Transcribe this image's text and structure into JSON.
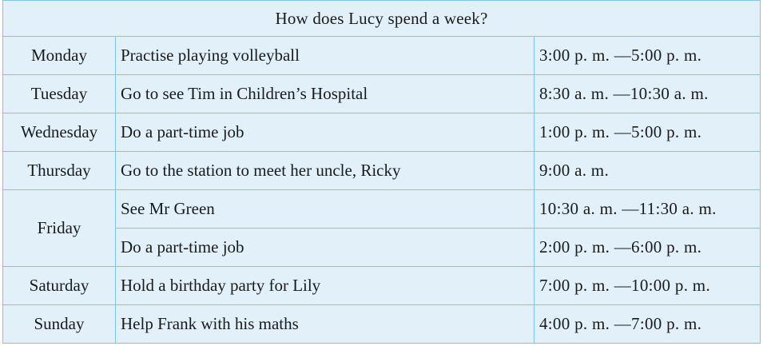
{
  "title": "How does Lucy spend a week?",
  "rows": [
    {
      "day": "Monday",
      "activity": "Practise playing volleyball",
      "time": "3:00 p. m. —5:00 p. m."
    },
    {
      "day": "Tuesday",
      "activity": "Go to see Tim in Children’s Hospital",
      "time": "8:30 a. m. —10:30 a. m."
    },
    {
      "day": "Wednesday",
      "activity": "Do a part-time job",
      "time": "1:00 p. m. —5:00 p. m."
    },
    {
      "day": "Thursday",
      "activity": "Go to the station to meet her uncle, Ricky",
      "time": "9:00 a. m."
    },
    {
      "day": "Friday",
      "activity": "See Mr Green",
      "time": "10:30 a. m. —11:30 a. m."
    },
    {
      "day": "",
      "activity": "Do a part-time job",
      "time": "2:00 p. m. —6:00 p. m."
    },
    {
      "day": "Saturday",
      "activity": "Hold a birthday party for Lily",
      "time": "7:00 p. m. —10:00 p. m."
    },
    {
      "day": "Sunday",
      "activity": "Help Frank with his maths",
      "time": "4:00 p. m. —7:00 p. m."
    }
  ]
}
